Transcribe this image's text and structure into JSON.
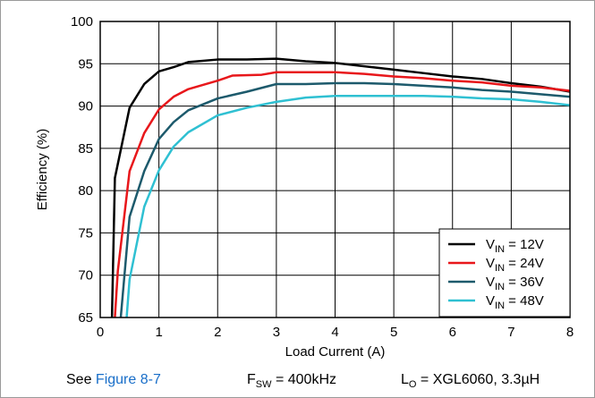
{
  "chart_data": {
    "type": "line",
    "title": "",
    "xlabel": "Load Current (A)",
    "ylabel": "Efficiency (%)",
    "xlim": [
      0,
      8
    ],
    "ylim": [
      65,
      100
    ],
    "xticks": [
      "0",
      "1",
      "2",
      "3",
      "4",
      "5",
      "6",
      "7",
      "8"
    ],
    "yticks": [
      "65",
      "70",
      "75",
      "80",
      "85",
      "90",
      "95",
      "100"
    ],
    "grid": true,
    "legend_position": "bottom-right",
    "series": [
      {
        "name": "12V",
        "legend_prefix": "V",
        "legend_sub": "IN",
        "legend_suffix": " = ",
        "color": "#000000",
        "points": [
          [
            0.2,
            65
          ],
          [
            0.25,
            81.5
          ],
          [
            0.5,
            89.8
          ],
          [
            0.75,
            92.6
          ],
          [
            1,
            94.1
          ],
          [
            1.25,
            94.6
          ],
          [
            1.5,
            95.2
          ],
          [
            2,
            95.5
          ],
          [
            2.5,
            95.5
          ],
          [
            3,
            95.6
          ],
          [
            3.5,
            95.3
          ],
          [
            4,
            95.1
          ],
          [
            4.5,
            94.7
          ],
          [
            5,
            94.3
          ],
          [
            5.5,
            93.9
          ],
          [
            6,
            93.5
          ],
          [
            6.5,
            93.2
          ],
          [
            7,
            92.7
          ],
          [
            7.5,
            92.3
          ],
          [
            8,
            91.7
          ]
        ]
      },
      {
        "name": "24V",
        "legend_prefix": "V",
        "legend_sub": "IN",
        "legend_suffix": " = ",
        "color": "#e8171b",
        "points": [
          [
            0.25,
            65
          ],
          [
            0.3,
            70.5
          ],
          [
            0.5,
            82.3
          ],
          [
            0.75,
            86.8
          ],
          [
            1,
            89.6
          ],
          [
            1.25,
            91.1
          ],
          [
            1.5,
            92.0
          ],
          [
            2,
            93.0
          ],
          [
            2.25,
            93.6
          ],
          [
            2.75,
            93.7
          ],
          [
            3,
            94.0
          ],
          [
            3.5,
            94.0
          ],
          [
            4,
            94.0
          ],
          [
            4.5,
            93.8
          ],
          [
            5,
            93.5
          ],
          [
            5.5,
            93.3
          ],
          [
            6,
            93.0
          ],
          [
            6.5,
            92.8
          ],
          [
            7,
            92.4
          ],
          [
            7.5,
            92.2
          ],
          [
            8,
            91.8
          ]
        ]
      },
      {
        "name": "36V",
        "legend_prefix": "V",
        "legend_sub": "IN",
        "legend_suffix": " = ",
        "color": "#1d5a6c",
        "points": [
          [
            0.35,
            65
          ],
          [
            0.5,
            76.9
          ],
          [
            0.75,
            82.3
          ],
          [
            1,
            86.1
          ],
          [
            1.25,
            88.1
          ],
          [
            1.5,
            89.5
          ],
          [
            2,
            90.9
          ],
          [
            2.5,
            91.7
          ],
          [
            3,
            92.6
          ],
          [
            3.5,
            92.6
          ],
          [
            4,
            92.7
          ],
          [
            4.5,
            92.7
          ],
          [
            5,
            92.6
          ],
          [
            5.5,
            92.4
          ],
          [
            6,
            92.2
          ],
          [
            6.5,
            91.9
          ],
          [
            7,
            91.7
          ],
          [
            7.5,
            91.4
          ],
          [
            8,
            91.1
          ]
        ]
      },
      {
        "name": "48V",
        "legend_prefix": "V",
        "legend_sub": "IN",
        "legend_suffix": " = ",
        "color": "#2fc0d2",
        "points": [
          [
            0.45,
            65
          ],
          [
            0.5,
            69.5
          ],
          [
            0.75,
            78.1
          ],
          [
            1,
            82.4
          ],
          [
            1.25,
            85.2
          ],
          [
            1.5,
            86.9
          ],
          [
            2,
            88.9
          ],
          [
            2.5,
            89.8
          ],
          [
            3,
            90.5
          ],
          [
            3.5,
            91.0
          ],
          [
            4,
            91.2
          ],
          [
            4.5,
            91.2
          ],
          [
            5,
            91.2
          ],
          [
            5.5,
            91.2
          ],
          [
            6,
            91.1
          ],
          [
            6.5,
            90.9
          ],
          [
            7,
            90.8
          ],
          [
            7.5,
            90.5
          ],
          [
            8,
            90.1
          ]
        ]
      }
    ]
  },
  "caption": {
    "see_text": "See",
    "figure_link": "Figure 8-7",
    "fsw_prefix": "F",
    "fsw_sub": "SW",
    "fsw_value": " = 400kHz",
    "lo_prefix": "L",
    "lo_sub": "O",
    "lo_value": " = XGL6060, 3.3µH"
  },
  "colors": {
    "grid": "#000000",
    "link": "#1a6fc9"
  }
}
